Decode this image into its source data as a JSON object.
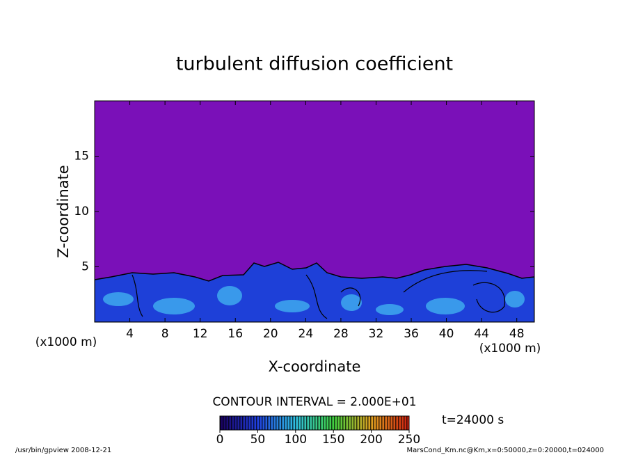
{
  "chart_data": {
    "type": "contour",
    "title": "turbulent diffusion coefficient",
    "xlabel": "X-coordinate",
    "ylabel": "Z-coordinate",
    "xlim": [
      0,
      50
    ],
    "ylim": [
      0,
      20
    ],
    "xticks": [
      4,
      8,
      12,
      16,
      20,
      24,
      28,
      32,
      36,
      40,
      44,
      48
    ],
    "yticks": [
      5,
      10,
      15
    ],
    "grid": false,
    "unit_labels": [
      "(x1000 m)",
      "(x1000 m)"
    ],
    "contour_interval": "CONTOUR INTERVAL = 2.000E+01",
    "time_label": "t=24000 s",
    "colorbar": {
      "lim": [
        0,
        250
      ],
      "ticks": [
        0,
        50,
        100,
        150,
        200,
        250
      ]
    },
    "footer_left": "/usr/bin/gpview  2008-12-21",
    "footer_right": "MarsCond_Km.nc@Km,x=0:50000,z=0:20000,t=024000"
  }
}
